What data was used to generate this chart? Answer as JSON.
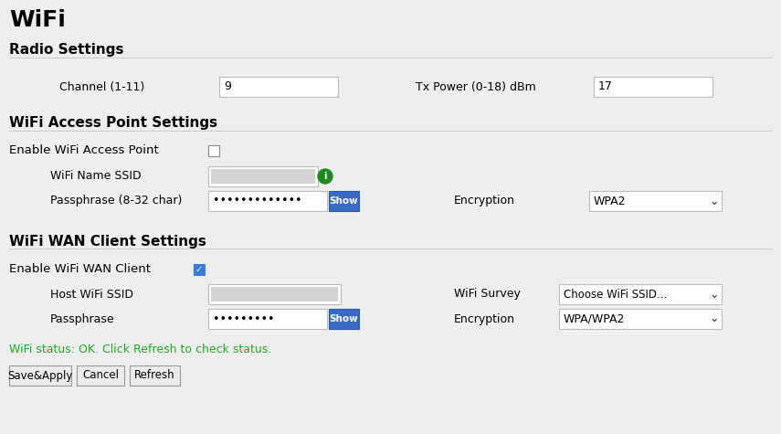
{
  "bg_color": "#eeeeee",
  "title": "WiFi",
  "section1": "Radio Settings",
  "section2": "WiFi Access Point Settings",
  "section3": "WiFi WAN Client Settings",
  "channel_label": "Channel (1-11)",
  "channel_value": "9",
  "txpower_label": "Tx Power (0-18) dBm",
  "txpower_value": "17",
  "enable_ap_label": "Enable WiFi Access Point",
  "wifi_name_label": "WiFi Name SSID",
  "passphrase_ap_label": "Passphrase (8-32 char)",
  "encryption_label": "Encryption",
  "encryption_value": "WPA2",
  "enable_wan_label": "Enable WiFi WAN Client",
  "host_ssid_label": "Host WiFi SSID",
  "passphrase_wan_label": "Passphrase",
  "wifi_survey_label": "WiFi Survey",
  "wifi_survey_value": "Choose WiFi SSID...",
  "encryption_wan_value": "WPA/WPA2",
  "status_text": "WiFi status: OK. Click Refresh to check status.",
  "btn1": "Save&Apply",
  "btn2": "Cancel",
  "btn3": "Refresh",
  "dots_short": "•••••••••",
  "dots_long": "•••••••••••••",
  "show_btn_color": "#3a6bc4",
  "status_color": "#22aa22",
  "section_color": "#000000",
  "label_color": "#000000",
  "input_bg": "#ffffff",
  "input_border": "#bbbbbb",
  "dropdown_bg": "#ffffff",
  "ssid_blur_color": "#c8c8c8",
  "checkbox_checked_color": "#3a7bd5",
  "show_text_color": "#ffffff",
  "info_icon_color": "#228822"
}
